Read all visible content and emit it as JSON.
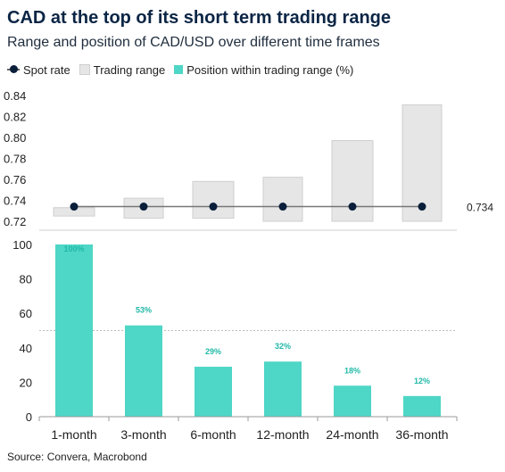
{
  "title": "CAD at the top of its short term trading range",
  "subtitle": "Range and position of CAD/USD over different time frames",
  "legend": {
    "spot": "Spot rate",
    "range": "Trading range",
    "position": "Position within trading range (%)"
  },
  "source": "Source: Convera, Macrobond",
  "colors": {
    "range_fill": "#e6e6e6",
    "range_stroke": "#cfcfcf",
    "spot": "#0b1f3a",
    "position_bar": "#4ed6c6",
    "position_label": "#21b9a8"
  },
  "chart_data": [
    {
      "type": "range",
      "categories": [
        "1-month",
        "3-month",
        "6-month",
        "12-month",
        "24-month",
        "36-month"
      ],
      "range_low": [
        0.725,
        0.723,
        0.723,
        0.72,
        0.72,
        0.72
      ],
      "range_high": [
        0.733,
        0.742,
        0.758,
        0.762,
        0.797,
        0.831
      ],
      "spot": 0.734,
      "spot_label": "0.734",
      "ylim": [
        0.72,
        0.84
      ],
      "yticks": [
        "0.72",
        "0.74",
        "0.76",
        "0.78",
        "0.80",
        "0.82",
        "0.84"
      ]
    },
    {
      "type": "bar",
      "categories": [
        "1-month",
        "3-month",
        "6-month",
        "12-month",
        "24-month",
        "36-month"
      ],
      "values": [
        100,
        53,
        29,
        32,
        18,
        12
      ],
      "data_labels": [
        "100%",
        "53%",
        "29%",
        "32%",
        "18%",
        "12%"
      ],
      "reference_line": 50,
      "ylim": [
        0,
        100
      ],
      "yticks": [
        "0",
        "20",
        "40",
        "60",
        "80",
        "100"
      ]
    }
  ]
}
